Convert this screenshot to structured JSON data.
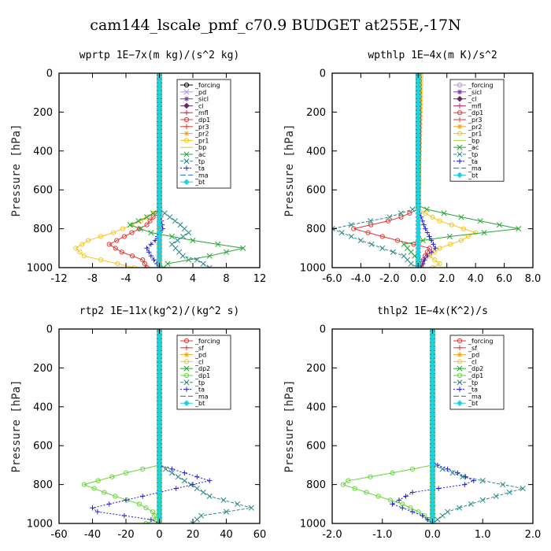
{
  "page_title": "cam144_lscale_pmf_c70.9  BUDGET at255E,-17N",
  "chart_data": [
    {
      "type": "line",
      "id": "wprtp",
      "title": "wprtp   1E−7x(m kg)/(s^2 kg)",
      "ylabel": "Pressure [hPa]",
      "xlabel": "",
      "xlim": [
        -12,
        12
      ],
      "ylim": [
        1000,
        0
      ],
      "xticks": [
        -12,
        -8,
        -4,
        0,
        4,
        8,
        12
      ],
      "xtick_labels": [
        "-12",
        "-8",
        "-4",
        "0",
        "4",
        "8",
        "12"
      ],
      "yticks": [
        0,
        200,
        400,
        600,
        800,
        1000
      ],
      "ytick_labels": [
        "0",
        "200",
        "400",
        "600",
        "800",
        "1000"
      ],
      "legend_position": "top-right",
      "series": [
        {
          "name": "_forcing",
          "color": "#000000",
          "marker": "o",
          "dash": "",
          "p": [
            0,
            1000
          ],
          "x": [
            0,
            0
          ]
        },
        {
          "name": "_pd",
          "color": "#b59ad8",
          "marker": "x",
          "dash": "",
          "p": [
            0,
            1000
          ],
          "x": [
            0,
            0
          ]
        },
        {
          "name": "_sicl",
          "color": "#7b3fa0",
          "marker": "*",
          "dash": "",
          "p": [
            0,
            1000
          ],
          "x": [
            0,
            0
          ]
        },
        {
          "name": "_cl",
          "color": "#6b2468",
          "marker": "d",
          "dash": "",
          "p": [
            0,
            1000
          ],
          "x": [
            0,
            0
          ]
        },
        {
          "name": "_mfl",
          "color": "#c0255c",
          "marker": "+",
          "dash": "",
          "p": [
            0,
            1000
          ],
          "x": [
            0,
            0
          ]
        },
        {
          "name": "_dp1",
          "color": "#e8352e",
          "marker": "o",
          "dash": "",
          "p": [
            0,
            700,
            780,
            840,
            880,
            920,
            960,
            1000
          ],
          "x": [
            0,
            0,
            -1.5,
            -4.2,
            -6.0,
            -4.5,
            -2.0,
            -1.5
          ]
        },
        {
          "name": "_pr3",
          "color": "#e8352e",
          "marker": "+",
          "dash": "",
          "p": [
            0,
            1000
          ],
          "x": [
            0,
            0
          ]
        },
        {
          "name": "_pr2",
          "color": "#f2a81d",
          "marker": "*",
          "dash": "",
          "p": [
            0,
            1000
          ],
          "x": [
            0,
            0
          ]
        },
        {
          "name": "_pr1",
          "color": "#f6c51e",
          "marker": "o",
          "dash": "",
          "p": [
            0,
            700,
            760,
            820,
            860,
            900,
            940,
            980,
            1000
          ],
          "x": [
            0,
            0,
            -2.2,
            -5.5,
            -8.5,
            -10.0,
            -9.0,
            -5.0,
            -3.0
          ]
        },
        {
          "name": "_bp",
          "color": "#a6d53a",
          "marker": "",
          "dash": "",
          "p": [
            0,
            1000
          ],
          "x": [
            0,
            0
          ]
        },
        {
          "name": "_ac",
          "color": "#27a737",
          "marker": "x",
          "dash": "",
          "p": [
            0,
            700,
            740,
            780,
            820,
            860,
            900,
            940,
            980,
            1000
          ],
          "x": [
            0,
            0,
            -1.5,
            -3.5,
            -1.0,
            4.0,
            10.0,
            6.0,
            1.0,
            0.5
          ]
        },
        {
          "name": "_tp",
          "color": "#2f8a8a",
          "marker": "x",
          "dash": "4 2",
          "p": [
            0,
            700,
            780,
            820,
            880,
            940,
            960,
            1000
          ],
          "x": [
            0,
            0,
            2.5,
            3.5,
            1.5,
            2.8,
            4.5,
            6.0
          ]
        },
        {
          "name": "_ta",
          "color": "#2222cc",
          "marker": "+",
          "dash": "2 2",
          "p": [
            0,
            700,
            800,
            860,
            900,
            940,
            980,
            1000
          ],
          "x": [
            0,
            0,
            0.4,
            -0.5,
            -1.5,
            -1.0,
            -0.3,
            0
          ]
        },
        {
          "name": "_ma",
          "color": "#1d6fd0",
          "marker": "",
          "dash": "7 3",
          "p": [
            0,
            1000
          ],
          "x": [
            0,
            0
          ]
        },
        {
          "name": "_bt",
          "color": "#1cd3e0",
          "marker": "D",
          "dash": "",
          "p": [
            0,
            1000
          ],
          "x": [
            0,
            0
          ]
        }
      ]
    },
    {
      "type": "line",
      "id": "wpthlp",
      "title": "wpthlp   1E−4x(m K)/s^2",
      "ylabel": "Pressure [hPa]",
      "xlabel": "",
      "xlim": [
        -6.0,
        8.0
      ],
      "ylim": [
        1000,
        0
      ],
      "xticks": [
        -6,
        -4,
        -2,
        0,
        2,
        4,
        6,
        8
      ],
      "xtick_labels": [
        "-6.0",
        "-4.0",
        "-2.0",
        "0.0",
        "2.0",
        "4.0",
        "6.0",
        "8.0"
      ],
      "yticks": [
        0,
        200,
        400,
        600,
        800,
        1000
      ],
      "ytick_labels": [
        "0",
        "200",
        "400",
        "600",
        "800",
        "1000"
      ],
      "legend_position": "top-right",
      "series": [
        {
          "name": "_forcing",
          "color": "#b59ad8",
          "marker": "o",
          "dash": "",
          "p": [
            0,
            1000
          ],
          "x": [
            0,
            0
          ]
        },
        {
          "name": "_sicl",
          "color": "#7b3fa0",
          "marker": "*",
          "dash": "",
          "p": [
            0,
            1000
          ],
          "x": [
            0,
            0
          ]
        },
        {
          "name": "_cl",
          "color": "#6b2468",
          "marker": "d",
          "dash": "",
          "p": [
            0,
            1000
          ],
          "x": [
            0,
            0
          ]
        },
        {
          "name": "_mfl",
          "color": "#c0255c",
          "marker": "+",
          "dash": "",
          "p": [
            0,
            1000
          ],
          "x": [
            0,
            0
          ]
        },
        {
          "name": "_dp1",
          "color": "#e8352e",
          "marker": "o",
          "dash": "",
          "p": [
            0,
            700,
            750,
            800,
            850,
            900,
            950,
            1000
          ],
          "x": [
            0.1,
            0,
            -1.5,
            -4.5,
            -2.0,
            0.8,
            0.4,
            0.2
          ]
        },
        {
          "name": "_pr3",
          "color": "#e8352e",
          "marker": "+",
          "dash": "",
          "p": [
            0,
            1000
          ],
          "x": [
            0,
            0
          ]
        },
        {
          "name": "_pr2",
          "color": "#f2a81d",
          "marker": "*",
          "dash": "",
          "p": [
            0,
            1000
          ],
          "x": [
            0,
            0
          ]
        },
        {
          "name": "_pr1",
          "color": "#f6c51e",
          "marker": "o",
          "dash": "",
          "p": [
            0,
            700,
            760,
            820,
            860,
            900,
            940,
            980,
            1000
          ],
          "x": [
            0.2,
            0,
            1.5,
            4.0,
            3.0,
            1.5,
            0.8,
            1.5,
            1.0
          ]
        },
        {
          "name": "_bp",
          "color": "#a6d53a",
          "marker": "",
          "dash": "",
          "p": [
            0,
            1000
          ],
          "x": [
            0,
            0
          ]
        },
        {
          "name": "_ac",
          "color": "#27a737",
          "marker": "x",
          "dash": "",
          "p": [
            0,
            690,
            740,
            800,
            850,
            880,
            920,
            960,
            1000
          ],
          "x": [
            0,
            0,
            3.0,
            7.0,
            1.0,
            -1.0,
            -0.5,
            0,
            0
          ]
        },
        {
          "name": "_tp",
          "color": "#2f8a8a",
          "marker": "x",
          "dash": "4 2",
          "p": [
            0,
            690,
            740,
            800,
            860,
            900,
            940,
            980,
            1000
          ],
          "x": [
            0,
            0,
            -2.0,
            -6.0,
            -4.0,
            -2.5,
            -1.0,
            -0.5,
            0
          ]
        },
        {
          "name": "_ta",
          "color": "#2222cc",
          "marker": "+",
          "dash": "2 2",
          "p": [
            0,
            700,
            800,
            900,
            950,
            1000
          ],
          "x": [
            0,
            0,
            0.5,
            1.2,
            0.5,
            0.2
          ]
        },
        {
          "name": "_ma",
          "color": "#1d6fd0",
          "marker": "",
          "dash": "7 3",
          "p": [
            0,
            1000
          ],
          "x": [
            0,
            0
          ]
        },
        {
          "name": "_bt",
          "color": "#1cd3e0",
          "marker": "D",
          "dash": "",
          "p": [
            0,
            1000
          ],
          "x": [
            0,
            0
          ]
        }
      ]
    },
    {
      "type": "line",
      "id": "rtp2",
      "title": "rtp2   1E−11x(kg^2)/(kg^2 s)",
      "ylabel": "Pressure [hPa]",
      "xlabel": "",
      "xlim": [
        -60,
        60
      ],
      "ylim": [
        1000,
        0
      ],
      "xticks": [
        -60,
        -40,
        -20,
        0,
        20,
        40,
        60
      ],
      "xtick_labels": [
        "-60",
        "-40",
        "-20",
        "0",
        "20",
        "40",
        "60"
      ],
      "yticks": [
        0,
        200,
        400,
        600,
        800,
        1000
      ],
      "ytick_labels": [
        "0",
        "200",
        "400",
        "600",
        "800",
        "1000"
      ],
      "legend_position": "top-right",
      "series": [
        {
          "name": "_forcing",
          "color": "#e8352e",
          "marker": "o",
          "dash": "",
          "p": [
            0,
            1000
          ],
          "x": [
            0,
            0
          ]
        },
        {
          "name": "_sf",
          "color": "#e8352e",
          "marker": "+",
          "dash": "",
          "p": [
            0,
            1000
          ],
          "x": [
            0,
            0
          ]
        },
        {
          "name": "_pd",
          "color": "#f2a81d",
          "marker": "*",
          "dash": "",
          "p": [
            0,
            1000
          ],
          "x": [
            0,
            0
          ]
        },
        {
          "name": "_cl",
          "color": "#f6c51e",
          "marker": "o",
          "dash": "",
          "p": [
            0,
            1000
          ],
          "x": [
            0,
            0
          ]
        },
        {
          "name": "_dp2",
          "color": "#27a737",
          "marker": "x",
          "dash": "",
          "p": [
            0,
            1000
          ],
          "x": [
            0,
            0
          ]
        },
        {
          "name": "_dp1",
          "color": "#66d63a",
          "marker": "o",
          "dash": "",
          "p": [
            0,
            700,
            740,
            800,
            850,
            900,
            940,
            980,
            1000
          ],
          "x": [
            0,
            0,
            -20.0,
            -45.0,
            -30.0,
            -12.0,
            -4.0,
            -2.0,
            -8.0
          ]
        },
        {
          "name": "_tp",
          "color": "#2f8a8a",
          "marker": "x",
          "dash": "4 2",
          "p": [
            0,
            700,
            780,
            860,
            920,
            960,
            1000
          ],
          "x": [
            0,
            0,
            15.0,
            30.0,
            55.0,
            25.0,
            20.0
          ]
        },
        {
          "name": "_ta",
          "color": "#2222cc",
          "marker": "+",
          "dash": "2 2",
          "p": [
            0,
            700,
            780,
            820,
            880,
            930,
            980,
            1000
          ],
          "x": [
            0,
            0,
            30.0,
            10.0,
            -20.0,
            -45.0,
            -5.0,
            0
          ]
        },
        {
          "name": "_ma",
          "color": "#1d6fd0",
          "marker": "",
          "dash": "7 3",
          "p": [
            0,
            1000
          ],
          "x": [
            0,
            0
          ]
        },
        {
          "name": "_bt",
          "color": "#1cd3e0",
          "marker": "D",
          "dash": "",
          "p": [
            0,
            1000
          ],
          "x": [
            0,
            0
          ]
        }
      ]
    },
    {
      "type": "line",
      "id": "thlp2",
      "title": "thlp2   1E−4x(K^2)/s",
      "ylabel": "Pressure [hPa]",
      "xlabel": "",
      "xlim": [
        -2.0,
        2.0
      ],
      "ylim": [
        1000,
        0
      ],
      "xticks": [
        -2,
        -1,
        0,
        1,
        2
      ],
      "xtick_labels": [
        "-2.0",
        "-1.0",
        "0.0",
        "1.0",
        "2.0"
      ],
      "yticks": [
        0,
        200,
        400,
        600,
        800,
        1000
      ],
      "ytick_labels": [
        "0",
        "200",
        "400",
        "600",
        "800",
        "1000"
      ],
      "legend_position": "top-right",
      "series": [
        {
          "name": "_forcing",
          "color": "#e8352e",
          "marker": "o",
          "dash": "",
          "p": [
            0,
            1000
          ],
          "x": [
            0,
            0
          ]
        },
        {
          "name": "_sf",
          "color": "#e8352e",
          "marker": "+",
          "dash": "",
          "p": [
            0,
            1000
          ],
          "x": [
            0,
            0
          ]
        },
        {
          "name": "_pd",
          "color": "#f2a81d",
          "marker": "*",
          "dash": "",
          "p": [
            0,
            1000
          ],
          "x": [
            0,
            0
          ]
        },
        {
          "name": "_cl",
          "color": "#f6c51e",
          "marker": "o",
          "dash": "",
          "p": [
            0,
            1000
          ],
          "x": [
            0,
            0
          ]
        },
        {
          "name": "_dp2",
          "color": "#27a737",
          "marker": "x",
          "dash": "",
          "p": [
            0,
            1000
          ],
          "x": [
            0,
            0
          ]
        },
        {
          "name": "_dp1",
          "color": "#66d63a",
          "marker": "o",
          "dash": "",
          "p": [
            0,
            700,
            740,
            790,
            850,
            900,
            950,
            1000
          ],
          "x": [
            0,
            0,
            -0.8,
            -1.9,
            -1.2,
            -0.6,
            -0.2,
            0
          ]
        },
        {
          "name": "_tp",
          "color": "#2f8a8a",
          "marker": "x",
          "dash": "4 2",
          "p": [
            0,
            700,
            760,
            820,
            880,
            940,
            1000
          ],
          "x": [
            0,
            0,
            0.6,
            1.8,
            1.0,
            0.3,
            0
          ]
        },
        {
          "name": "_ta",
          "color": "#2222cc",
          "marker": "+",
          "dash": "2 2",
          "p": [
            0,
            690,
            740,
            790,
            840,
            900,
            960,
            1000
          ],
          "x": [
            0,
            0,
            0.5,
            0.9,
            -0.4,
            -0.8,
            -0.2,
            0
          ]
        },
        {
          "name": "_ma",
          "color": "#1d6fd0",
          "marker": "",
          "dash": "7 3",
          "p": [
            0,
            1000
          ],
          "x": [
            0,
            0
          ]
        },
        {
          "name": "_bt",
          "color": "#1cd3e0",
          "marker": "D",
          "dash": "",
          "p": [
            0,
            1000
          ],
          "x": [
            0,
            0
          ]
        }
      ]
    }
  ]
}
